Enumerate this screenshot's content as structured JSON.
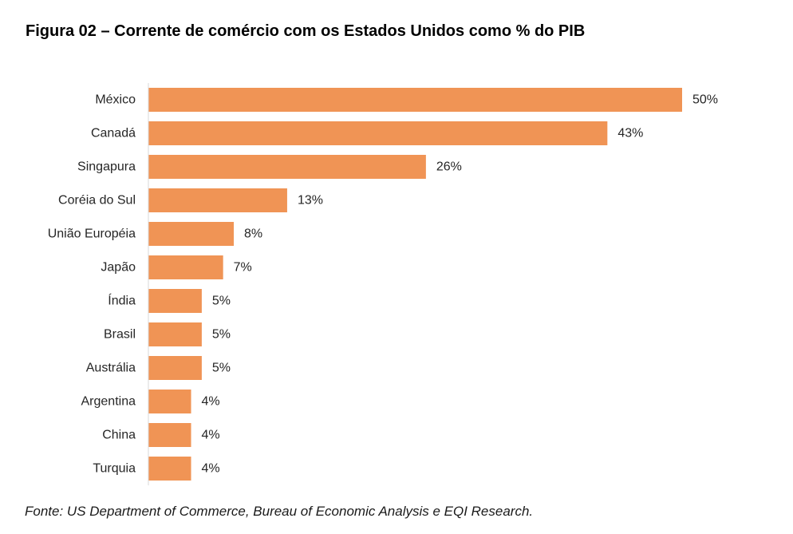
{
  "title": "Figura 02 – Corrente de comércio com os Estados Unidos como % do PIB",
  "source": "Fonte: US Department of Commerce, Bureau of Economic Analysis e EQI Research.",
  "colors": {
    "bar": "#F09455",
    "axis": "#d9d9d9"
  },
  "chart_data": {
    "type": "bar",
    "orientation": "horizontal",
    "categories": [
      "México",
      "Canadá",
      "Singapura",
      "Coréia do Sul",
      "União Européia",
      "Japão",
      "Índia",
      "Brasil",
      "Austrália",
      "Argentina",
      "China",
      "Turquia"
    ],
    "values": [
      50,
      43,
      26,
      13,
      8,
      7,
      5,
      5,
      5,
      4,
      4,
      4
    ],
    "value_labels": [
      "50%",
      "43%",
      "26%",
      "13%",
      "8%",
      "7%",
      "5%",
      "5%",
      "5%",
      "4%",
      "4%",
      "4%"
    ],
    "xlim": [
      0,
      50
    ],
    "grid": false,
    "legend": "none"
  }
}
